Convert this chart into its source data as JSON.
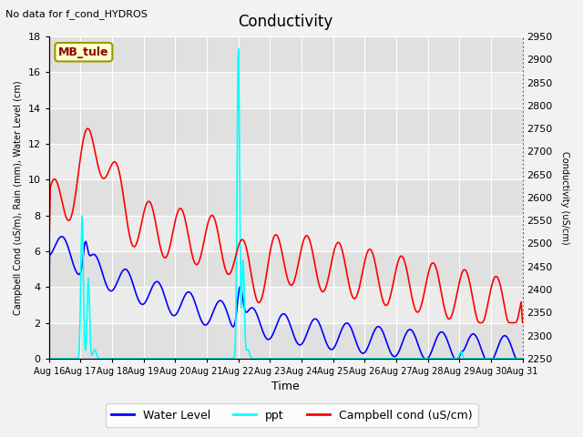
{
  "title": "Conductivity",
  "top_left_text": "No data for f_cond_HYDROS",
  "xlabel": "Time",
  "ylabel_left": "Campbell Cond (uS/m), Rain (mm), Water Level (cm)",
  "ylabel_right": "Conductivity (uS/cm)",
  "ylim_left": [
    0,
    18
  ],
  "ylim_right": [
    2250,
    2950
  ],
  "xtick_labels": [
    "Aug 16",
    "Aug 17",
    "Aug 18",
    "Aug 19",
    "Aug 20",
    "Aug 21",
    "Aug 22",
    "Aug 23",
    "Aug 24",
    "Aug 25",
    "Aug 26",
    "Aug 27",
    "Aug 28",
    "Aug 29",
    "Aug 30",
    "Aug 31"
  ],
  "legend_labels": [
    "Water Level",
    "ppt",
    "Campbell cond (uS/cm)"
  ],
  "mb_tule_label": "MB_tule",
  "bg_color": "#f2f2f2",
  "band_colors": [
    "#e0e0e0",
    "#ebebeb"
  ],
  "grid_color": "#ffffff",
  "right_axis_dot_color": "#555555"
}
